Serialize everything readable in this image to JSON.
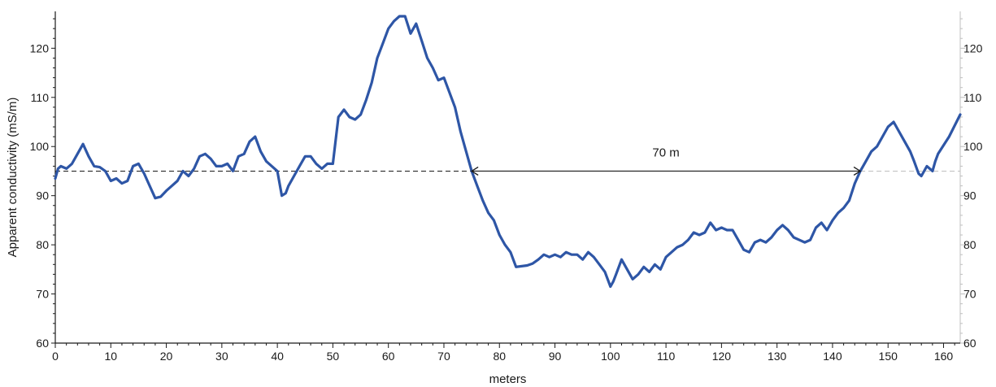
{
  "chart_data": {
    "type": "line",
    "title": "",
    "xlabel": "meters",
    "ylabel": "Apparent conductivity (mS/m)",
    "xlim": [
      0,
      163
    ],
    "ylim": [
      60,
      127.5
    ],
    "x_ticks": [
      "0",
      "10",
      "20",
      "30",
      "40",
      "50",
      "60",
      "70",
      "80",
      "90",
      "100",
      "110",
      "120",
      "130",
      "140",
      "150",
      "160"
    ],
    "y_ticks": [
      "60",
      "70",
      "80",
      "90",
      "100",
      "110",
      "120"
    ],
    "y_ticks_right": [
      "60",
      "70",
      "80",
      "90",
      "100",
      "110",
      "120"
    ],
    "grid": false,
    "line_color": "#2e56a6",
    "reference_line": {
      "y": 95,
      "style": "dashed"
    },
    "annotation": {
      "label": "70 m",
      "x_start": 75,
      "x_end": 145,
      "y": 95
    },
    "series": [
      {
        "points": [
          [
            0,
            93.5
          ],
          [
            0.5,
            95.5
          ],
          [
            1,
            96
          ],
          [
            2,
            95.5
          ],
          [
            3,
            96.5
          ],
          [
            4,
            98.5
          ],
          [
            5,
            100.5
          ],
          [
            6,
            98
          ],
          [
            7,
            96
          ],
          [
            8,
            95.8
          ],
          [
            9,
            95
          ],
          [
            10,
            93
          ],
          [
            11,
            93.5
          ],
          [
            12,
            92.5
          ],
          [
            13,
            93
          ],
          [
            14,
            96
          ],
          [
            15,
            96.5
          ],
          [
            16,
            94.5
          ],
          [
            17,
            92
          ],
          [
            18,
            89.5
          ],
          [
            19,
            89.8
          ],
          [
            20,
            91
          ],
          [
            21,
            92
          ],
          [
            22,
            93
          ],
          [
            23,
            95
          ],
          [
            24,
            94
          ],
          [
            25,
            95.5
          ],
          [
            26,
            98
          ],
          [
            27,
            98.5
          ],
          [
            28,
            97.5
          ],
          [
            29,
            96
          ],
          [
            30,
            96
          ],
          [
            31,
            96.5
          ],
          [
            32,
            95
          ],
          [
            33,
            98
          ],
          [
            34,
            98.5
          ],
          [
            35,
            101
          ],
          [
            36,
            102
          ],
          [
            37,
            99
          ],
          [
            38,
            97
          ],
          [
            39,
            96
          ],
          [
            40,
            95
          ],
          [
            40.8,
            90
          ],
          [
            41.5,
            90.5
          ],
          [
            42,
            92
          ],
          [
            43,
            94
          ],
          [
            44,
            96
          ],
          [
            45,
            98
          ],
          [
            46,
            98
          ],
          [
            47,
            96.5
          ],
          [
            48,
            95.5
          ],
          [
            49,
            96.5
          ],
          [
            50,
            96.5
          ],
          [
            51,
            106
          ],
          [
            52,
            107.5
          ],
          [
            53,
            106
          ],
          [
            54,
            105.5
          ],
          [
            55,
            106.5
          ],
          [
            56,
            109.5
          ],
          [
            57,
            113
          ],
          [
            58,
            118
          ],
          [
            59,
            121
          ],
          [
            60,
            124
          ],
          [
            61,
            125.5
          ],
          [
            62,
            126.5
          ],
          [
            63,
            126.5
          ],
          [
            64,
            123
          ],
          [
            65,
            125
          ],
          [
            66,
            121.5
          ],
          [
            67,
            118
          ],
          [
            68,
            116
          ],
          [
            69,
            113.5
          ],
          [
            70,
            114
          ],
          [
            71,
            111
          ],
          [
            72,
            108
          ],
          [
            73,
            103
          ],
          [
            74,
            99
          ],
          [
            75,
            95
          ],
          [
            76,
            92
          ],
          [
            77,
            89
          ],
          [
            78,
            86.5
          ],
          [
            79,
            85
          ],
          [
            80,
            82
          ],
          [
            81,
            80
          ],
          [
            82,
            78.5
          ],
          [
            83,
            75.5
          ],
          [
            85,
            75.8
          ],
          [
            86,
            76.2
          ],
          [
            87,
            77
          ],
          [
            88,
            78
          ],
          [
            89,
            77.5
          ],
          [
            90,
            78
          ],
          [
            91,
            77.5
          ],
          [
            92,
            78.5
          ],
          [
            93,
            78
          ],
          [
            94,
            78
          ],
          [
            95,
            77
          ],
          [
            96,
            78.5
          ],
          [
            97,
            77.5
          ],
          [
            98,
            76
          ],
          [
            99,
            74.5
          ],
          [
            100,
            71.5
          ],
          [
            100.5,
            72.5
          ],
          [
            101,
            74
          ],
          [
            102,
            77
          ],
          [
            103,
            75
          ],
          [
            104,
            73
          ],
          [
            105,
            74
          ],
          [
            106,
            75.5
          ],
          [
            107,
            74.5
          ],
          [
            108,
            76
          ],
          [
            109,
            75
          ],
          [
            110,
            77.5
          ],
          [
            111,
            78.5
          ],
          [
            112,
            79.5
          ],
          [
            113,
            80
          ],
          [
            114,
            81
          ],
          [
            115,
            82.5
          ],
          [
            116,
            82
          ],
          [
            117,
            82.5
          ],
          [
            118,
            84.5
          ],
          [
            119,
            83
          ],
          [
            120,
            83.5
          ],
          [
            121,
            83
          ],
          [
            122,
            83
          ],
          [
            123,
            81
          ],
          [
            124,
            79
          ],
          [
            125,
            78.5
          ],
          [
            126,
            80.5
          ],
          [
            127,
            81
          ],
          [
            128,
            80.5
          ],
          [
            129,
            81.5
          ],
          [
            130,
            83
          ],
          [
            131,
            84
          ],
          [
            132,
            83
          ],
          [
            133,
            81.5
          ],
          [
            134,
            81
          ],
          [
            135,
            80.5
          ],
          [
            136,
            81
          ],
          [
            137,
            83.5
          ],
          [
            138,
            84.5
          ],
          [
            139,
            83
          ],
          [
            140,
            85
          ],
          [
            141,
            86.5
          ],
          [
            142,
            87.5
          ],
          [
            143,
            89
          ],
          [
            144,
            92.5
          ],
          [
            145,
            95
          ],
          [
            146,
            97
          ],
          [
            147,
            99
          ],
          [
            148,
            100
          ],
          [
            149,
            102
          ],
          [
            150,
            104
          ],
          [
            151,
            105
          ],
          [
            152,
            103
          ],
          [
            153,
            101
          ],
          [
            154,
            99
          ],
          [
            154.7,
            97
          ],
          [
            155.5,
            94.5
          ],
          [
            156,
            94
          ],
          [
            157,
            96
          ],
          [
            158,
            95
          ],
          [
            158.5,
            97
          ],
          [
            159,
            98.5
          ],
          [
            161,
            102
          ],
          [
            163,
            106.5
          ]
        ]
      }
    ]
  }
}
